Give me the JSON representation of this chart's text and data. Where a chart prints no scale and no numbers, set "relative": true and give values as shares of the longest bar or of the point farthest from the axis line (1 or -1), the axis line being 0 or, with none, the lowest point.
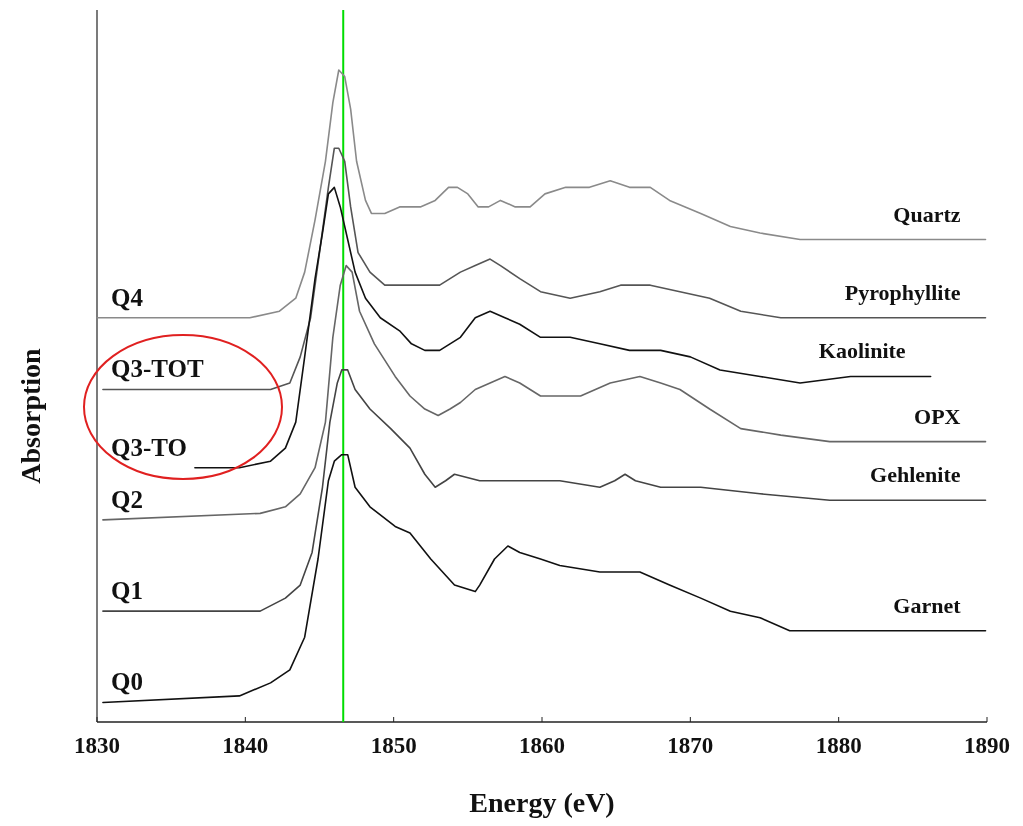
{
  "chart_data": {
    "type": "line",
    "relative": true,
    "xlabel": "Energy (eV)",
    "ylabel": "Absorption",
    "xlim": [
      1830,
      1890
    ],
    "xticks": [
      1830,
      1840,
      1850,
      1860,
      1870,
      1880,
      1890
    ],
    "grid": false,
    "marker": "none",
    "line_style": "solid",
    "series": [
      {
        "name": "Quartz",
        "color": "#8a8a8a",
        "x": [
          1830.0,
          1840.3,
          1842.3,
          1843.4,
          1844.0,
          1844.7,
          1845.4,
          1845.9,
          1846.3,
          1846.7,
          1847.1,
          1847.5,
          1848.1,
          1848.5,
          1849.4,
          1850.4,
          1851.1,
          1851.8,
          1852.8,
          1853.7,
          1854.3,
          1855.0,
          1855.7,
          1856.4,
          1857.2,
          1858.2,
          1859.2,
          1860.2,
          1861.6,
          1863.2,
          1864.6,
          1865.9,
          1867.3,
          1868.6,
          1870.7,
          1872.7,
          1874.7,
          1877.4,
          1880.8,
          1884.1,
          1889.9
        ],
        "values": [
          0.62,
          0.62,
          0.63,
          0.65,
          0.69,
          0.77,
          0.86,
          0.95,
          1.0,
          0.99,
          0.94,
          0.86,
          0.8,
          0.78,
          0.78,
          0.79,
          0.79,
          0.79,
          0.8,
          0.82,
          0.82,
          0.81,
          0.79,
          0.79,
          0.8,
          0.79,
          0.79,
          0.81,
          0.82,
          0.82,
          0.83,
          0.82,
          0.82,
          0.8,
          0.78,
          0.76,
          0.75,
          0.74,
          0.74,
          0.74,
          0.74
        ]
      },
      {
        "name": "Pyrophyllite",
        "color": "#555555",
        "x": [
          1830.4,
          1841.7,
          1843.0,
          1843.7,
          1844.4,
          1845.0,
          1845.6,
          1846.0,
          1846.3,
          1846.7,
          1847.1,
          1847.6,
          1848.4,
          1849.4,
          1850.4,
          1851.8,
          1853.1,
          1854.5,
          1855.5,
          1856.5,
          1857.2,
          1858.5,
          1859.9,
          1861.9,
          1863.9,
          1865.3,
          1867.3,
          1869.3,
          1871.3,
          1873.4,
          1876.1,
          1879.4,
          1884.1,
          1889.9
        ],
        "values": [
          0.51,
          0.51,
          0.52,
          0.56,
          0.62,
          0.72,
          0.82,
          0.88,
          0.88,
          0.86,
          0.79,
          0.72,
          0.69,
          0.67,
          0.67,
          0.67,
          0.67,
          0.69,
          0.7,
          0.71,
          0.7,
          0.68,
          0.66,
          0.65,
          0.66,
          0.67,
          0.67,
          0.66,
          0.65,
          0.63,
          0.62,
          0.62,
          0.62,
          0.62
        ]
      },
      {
        "name": "Kaolinite",
        "color": "#111111",
        "x": [
          1836.6,
          1839.6,
          1841.7,
          1842.7,
          1843.4,
          1844.0,
          1844.7,
          1845.2,
          1845.6,
          1846.0,
          1846.4,
          1846.9,
          1847.4,
          1848.1,
          1849.1,
          1850.4,
          1851.2,
          1852.1,
          1853.1,
          1854.5,
          1855.5,
          1856.5,
          1857.5,
          1858.5,
          1859.9,
          1861.9,
          1863.9,
          1865.9,
          1868.0,
          1870.0,
          1872.0,
          1874.7,
          1877.4,
          1880.8,
          1886.2
        ],
        "values": [
          0.39,
          0.39,
          0.4,
          0.42,
          0.46,
          0.56,
          0.68,
          0.75,
          0.81,
          0.82,
          0.79,
          0.74,
          0.69,
          0.65,
          0.62,
          0.6,
          0.58,
          0.57,
          0.57,
          0.59,
          0.62,
          0.63,
          0.62,
          0.61,
          0.59,
          0.59,
          0.58,
          0.57,
          0.57,
          0.56,
          0.54,
          0.53,
          0.52,
          0.53,
          0.53
        ]
      },
      {
        "name": "OPX",
        "color": "#666666",
        "x": [
          1830.4,
          1841.0,
          1842.7,
          1843.7,
          1844.7,
          1845.4,
          1845.9,
          1846.4,
          1846.8,
          1847.2,
          1847.7,
          1848.7,
          1850.1,
          1851.1,
          1852.1,
          1853.0,
          1853.8,
          1854.5,
          1855.5,
          1856.5,
          1857.5,
          1858.5,
          1859.9,
          1861.2,
          1862.6,
          1864.6,
          1866.6,
          1868.0,
          1869.3,
          1871.3,
          1873.4,
          1876.1,
          1879.4,
          1884.1,
          1889.9
        ],
        "values": [
          0.31,
          0.32,
          0.33,
          0.35,
          0.39,
          0.46,
          0.59,
          0.67,
          0.7,
          0.69,
          0.63,
          0.58,
          0.53,
          0.5,
          0.48,
          0.47,
          0.48,
          0.49,
          0.51,
          0.52,
          0.53,
          0.52,
          0.5,
          0.5,
          0.5,
          0.52,
          0.53,
          0.52,
          0.51,
          0.48,
          0.45,
          0.44,
          0.43,
          0.43,
          0.43
        ]
      },
      {
        "name": "Gehlenite",
        "color": "#444444",
        "x": [
          1830.4,
          1841.0,
          1842.7,
          1843.7,
          1844.5,
          1845.2,
          1845.7,
          1846.2,
          1846.5,
          1846.9,
          1847.4,
          1848.4,
          1849.8,
          1851.1,
          1852.1,
          1852.8,
          1853.5,
          1854.1,
          1855.8,
          1858.5,
          1861.2,
          1863.9,
          1864.9,
          1865.6,
          1866.3,
          1868.0,
          1870.7,
          1874.7,
          1879.4,
          1884.1,
          1889.9
        ],
        "values": [
          0.17,
          0.17,
          0.19,
          0.21,
          0.26,
          0.36,
          0.46,
          0.52,
          0.54,
          0.54,
          0.51,
          0.48,
          0.45,
          0.42,
          0.38,
          0.36,
          0.37,
          0.38,
          0.37,
          0.37,
          0.37,
          0.36,
          0.37,
          0.38,
          0.37,
          0.36,
          0.36,
          0.35,
          0.34,
          0.34,
          0.34
        ]
      },
      {
        "name": "Garnet",
        "color": "#111111",
        "x": [
          1830.4,
          1839.6,
          1841.7,
          1843.0,
          1844.0,
          1844.9,
          1845.6,
          1846.0,
          1846.5,
          1846.9,
          1847.4,
          1848.4,
          1850.1,
          1851.1,
          1852.5,
          1854.1,
          1855.5,
          1855.8,
          1856.8,
          1857.7,
          1858.5,
          1859.9,
          1861.2,
          1863.9,
          1866.6,
          1868.6,
          1870.7,
          1872.7,
          1874.7,
          1876.7,
          1878.8,
          1880.8,
          1882.8,
          1884.8,
          1889.9
        ],
        "values": [
          0.03,
          0.04,
          0.06,
          0.08,
          0.13,
          0.25,
          0.37,
          0.4,
          0.41,
          0.41,
          0.36,
          0.33,
          0.3,
          0.29,
          0.25,
          0.21,
          0.2,
          0.21,
          0.25,
          0.27,
          0.26,
          0.25,
          0.24,
          0.23,
          0.23,
          0.21,
          0.19,
          0.17,
          0.16,
          0.14,
          0.14,
          0.14,
          0.14,
          0.14,
          0.14
        ]
      }
    ],
    "annotations": [
      "Q4",
      "Q3-TOT",
      "Q3-TO",
      "Q2",
      "Q1",
      "Q0"
    ],
    "ref_lines": [
      {
        "axis": "x",
        "value": 1846.6,
        "color": "#00dd00",
        "line_style": "solid"
      }
    ]
  }
}
